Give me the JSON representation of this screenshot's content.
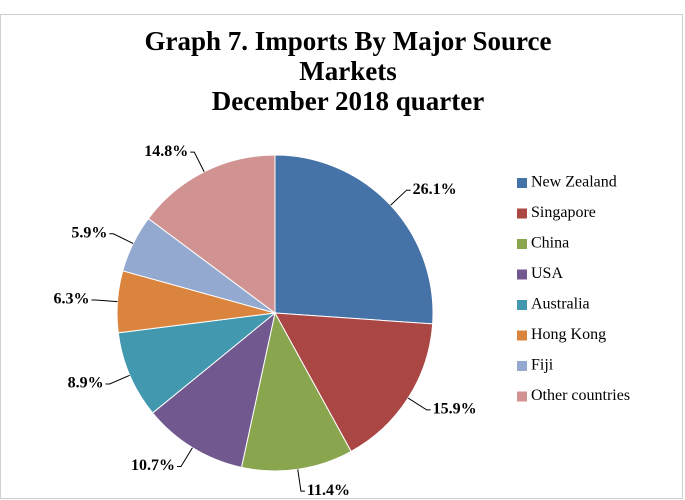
{
  "chart_data": {
    "type": "pie",
    "title": "Graph 7. Imports By Major Source Markets",
    "subtitle": "December 2018 quarter",
    "categories": [
      "New Zealand",
      "Singapore",
      "China",
      "USA",
      "Australia",
      "Hong Kong",
      "Fiji",
      "Other countries"
    ],
    "values": [
      26.1,
      15.9,
      11.4,
      10.7,
      8.9,
      6.3,
      5.9,
      14.8
    ],
    "value_labels": [
      "26.1%",
      "15.9%",
      "11.4%",
      "10.7%",
      "8.9%",
      "6.3%",
      "5.9%",
      "14.8%"
    ],
    "colors": [
      "#4572a7",
      "#aa4643",
      "#89a54e",
      "#71588f",
      "#4198af",
      "#db843d",
      "#93a9cf",
      "#d19392"
    ],
    "legend": "right"
  }
}
